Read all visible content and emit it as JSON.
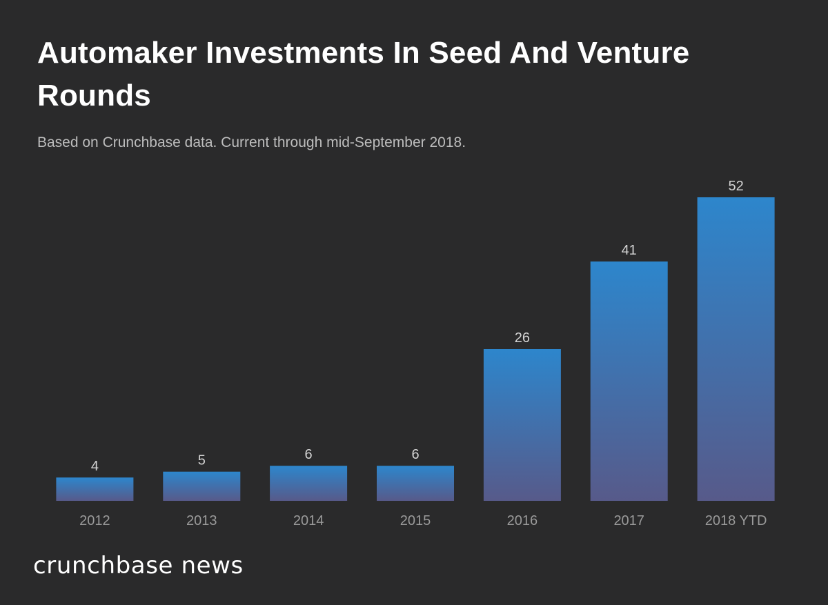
{
  "header": {
    "title": "Automaker Investments In Seed And Venture Rounds",
    "subtitle": "Based on Crunchbase data. Current through mid-September 2018."
  },
  "brand": {
    "text": "crunchbase news"
  },
  "colors": {
    "background": "#2a2a2b",
    "bar_top": "#2d86cc",
    "bar_bottom": "#575a8a",
    "value_label": "#d4d4d4",
    "category_label": "#9a9a9a"
  },
  "chart_data": {
    "type": "bar",
    "title": "Automaker Investments In Seed And Venture Rounds",
    "subtitle": "Based on Crunchbase data. Current through mid-September 2018.",
    "categories": [
      "2012",
      "2013",
      "2014",
      "2015",
      "2016",
      "2017",
      "2018 YTD"
    ],
    "values": [
      4,
      5,
      6,
      6,
      26,
      41,
      52
    ],
    "xlabel": "",
    "ylabel": "",
    "ylim": [
      0,
      52
    ],
    "grid": false,
    "legend": "none",
    "data_labels": true
  }
}
